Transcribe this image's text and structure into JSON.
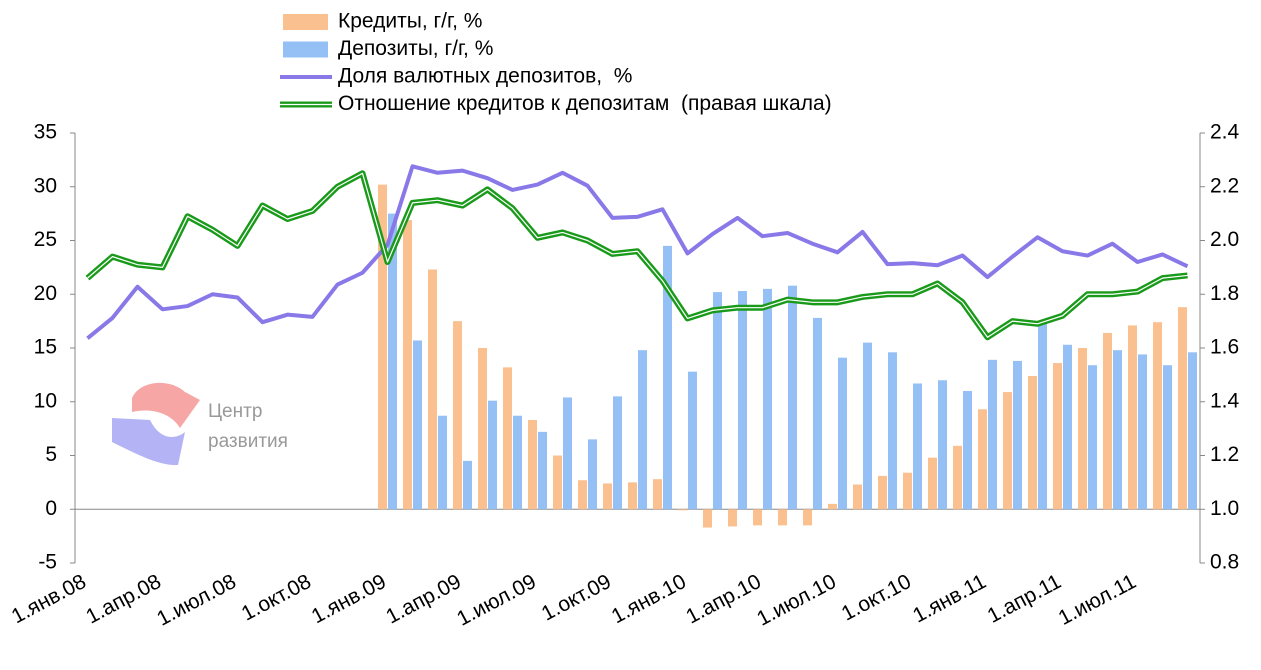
{
  "chart_data": {
    "type": "bar",
    "categories": [
      "1.янв.08",
      null,
      null,
      "1.апр.08",
      null,
      null,
      "1.июл.08",
      null,
      null,
      "1.окт.08",
      null,
      null,
      "1.янв.09",
      null,
      null,
      "1.апр.09",
      null,
      null,
      "1.июл.09",
      null,
      null,
      "1.окт.09",
      null,
      null,
      "1.янв.10",
      null,
      null,
      "1.апр.10",
      null,
      null,
      "1.июл.10",
      null,
      null,
      "1.окт.10",
      null,
      null,
      "1.янв.11",
      null,
      null,
      "1.апр.11",
      null,
      null,
      "1.июл.11",
      null,
      null
    ],
    "series": [
      {
        "name": "Кредиты, г/г, %",
        "type": "bar",
        "color": "#fac090",
        "values": [
          null,
          null,
          null,
          null,
          null,
          null,
          null,
          null,
          null,
          null,
          null,
          null,
          30.2,
          26.9,
          22.3,
          17.5,
          15.0,
          13.2,
          8.3,
          5.0,
          2.7,
          2.4,
          2.5,
          2.8,
          -0.1,
          -1.7,
          -1.6,
          -1.5,
          -1.5,
          -1.5,
          0.5,
          2.3,
          3.1,
          3.4,
          4.8,
          5.9,
          9.3,
          10.9,
          12.4,
          13.6,
          15.0,
          16.4,
          17.1,
          17.4,
          18.8
        ]
      },
      {
        "name": "Депозиты, г/г, %",
        "type": "bar",
        "color": "#95c0f5",
        "values": [
          null,
          null,
          null,
          null,
          null,
          null,
          null,
          null,
          null,
          null,
          null,
          null,
          27.5,
          15.7,
          8.7,
          4.5,
          10.1,
          8.7,
          7.2,
          10.4,
          6.5,
          10.5,
          14.8,
          24.5,
          12.8,
          20.2,
          20.3,
          20.5,
          20.8,
          17.8,
          14.1,
          15.5,
          14.6,
          11.7,
          12.0,
          11.0,
          13.9,
          13.8,
          17.3,
          15.3,
          13.4,
          14.8,
          14.4,
          13.4,
          14.6
        ]
      },
      {
        "name": "Доля валютных депозитов,  %",
        "type": "line",
        "color": "#8878e8",
        "values": [
          15.9,
          17.8,
          20.7,
          18.6,
          18.9,
          20.0,
          19.7,
          17.4,
          18.1,
          17.9,
          20.9,
          22.0,
          24.6,
          31.9,
          31.3,
          31.5,
          30.8,
          29.7,
          30.2,
          31.3,
          30.1,
          27.1,
          27.2,
          27.9,
          23.8,
          25.6,
          27.1,
          25.4,
          25.7,
          24.7,
          23.9,
          25.8,
          22.8,
          22.9,
          22.7,
          23.6,
          21.6,
          23.5,
          25.3,
          24.0,
          23.6,
          24.7,
          23.0,
          23.7,
          22.6
        ]
      },
      {
        "name": "Отношение кредитов к депозитам  (правая шкала)",
        "type": "line",
        "axis": "y2",
        "color": "#1a9a1a",
        "values": [
          1.86,
          1.94,
          1.91,
          1.9,
          2.09,
          2.04,
          1.98,
          2.13,
          2.08,
          2.11,
          2.2,
          2.25,
          1.92,
          2.14,
          2.15,
          2.13,
          2.19,
          2.12,
          2.01,
          2.03,
          2.0,
          1.95,
          1.96,
          1.85,
          1.71,
          1.74,
          1.75,
          1.75,
          1.78,
          1.77,
          1.77,
          1.79,
          1.8,
          1.8,
          1.84,
          1.77,
          1.64,
          1.7,
          1.69,
          1.72,
          1.8,
          1.8,
          1.81,
          1.86,
          1.87
        ]
      }
    ],
    "ylim": [
      -5,
      35
    ],
    "yticks": [
      35,
      30,
      25,
      20,
      15,
      10,
      5,
      0,
      -5
    ],
    "y2lim": [
      0.8,
      2.4
    ],
    "y2ticks": [
      2.4,
      2.2,
      {
        "value": 2,
        "label": "2.0"
      },
      1.8,
      1.6,
      1.4,
      1.2,
      {
        "value": 1,
        "label": "1.0"
      },
      0.8
    ],
    "watermark": [
      "Центр",
      "развития"
    ]
  }
}
